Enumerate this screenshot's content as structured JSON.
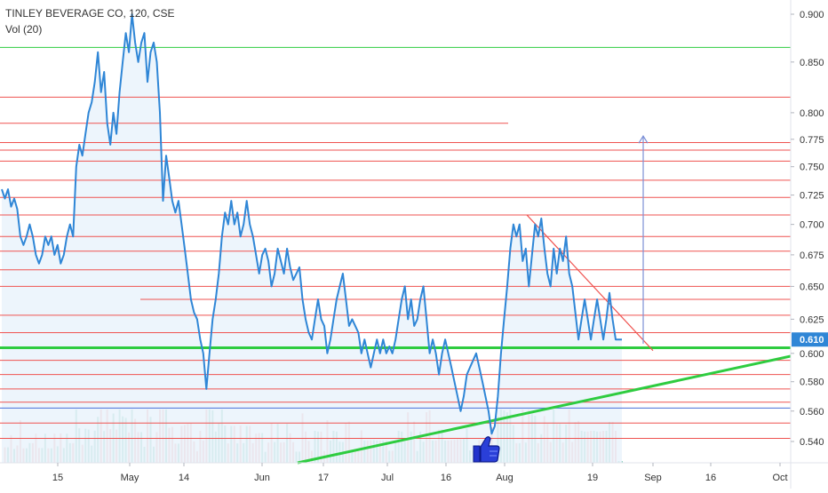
{
  "header": {
    "symbol_line": "TINLEY BEVERAGE CO, 120, CSE",
    "indicator_label": "Vol (20)"
  },
  "colors": {
    "price_line": "#2f86d6",
    "area_fill": "#e9f2fb",
    "red_line": "#ef5350",
    "green_line": "#2ecc40",
    "blue_line": "#4a6fd8",
    "arrow": "#7b8fd6",
    "vol_up": "#83c9b6",
    "vol_down": "#f3a9a9",
    "price_badge_bg": "#2f86d6",
    "price_badge_text": "#ffffff"
  },
  "chart_data": {
    "type": "line",
    "title": "TINLEY BEVERAGE CO, 120, CSE",
    "x_tick_labels": [
      "15",
      "May",
      "14",
      "Jun",
      "17",
      "Jul",
      "16",
      "Aug",
      "19",
      "Sep",
      "16",
      "Oct"
    ],
    "y_tick_labels": [
      "0.540",
      "0.560",
      "0.580",
      "0.600",
      "0.625",
      "0.650",
      "0.675",
      "0.700",
      "0.725",
      "0.750",
      "0.775",
      "0.800",
      "0.850",
      "0.900"
    ],
    "ylim": [
      0.53,
      0.91
    ],
    "y_scale": "log",
    "last_price_label": "0.610",
    "grid": false,
    "series": [
      {
        "values": [
          0.73,
          0.722,
          0.73,
          0.715,
          0.722,
          0.713,
          0.69,
          0.683,
          0.69,
          0.7,
          0.69,
          0.675,
          0.668,
          0.675,
          0.69,
          0.683,
          0.69,
          0.675,
          0.683,
          0.668,
          0.675,
          0.69,
          0.7,
          0.69,
          0.75,
          0.77,
          0.76,
          0.78,
          0.8,
          0.81,
          0.83,
          0.86,
          0.82,
          0.84,
          0.79,
          0.77,
          0.8,
          0.78,
          0.82,
          0.85,
          0.88,
          0.86,
          0.9,
          0.87,
          0.85,
          0.87,
          0.88,
          0.83,
          0.86,
          0.87,
          0.85,
          0.8,
          0.72,
          0.76,
          0.74,
          0.72,
          0.71,
          0.72,
          0.7,
          0.68,
          0.66,
          0.64,
          0.63,
          0.625,
          0.61,
          0.6,
          0.575,
          0.6,
          0.625,
          0.64,
          0.66,
          0.69,
          0.71,
          0.7,
          0.72,
          0.7,
          0.71,
          0.69,
          0.7,
          0.72,
          0.7,
          0.69,
          0.675,
          0.66,
          0.675,
          0.68,
          0.67,
          0.65,
          0.66,
          0.68,
          0.67,
          0.66,
          0.68,
          0.665,
          0.655,
          0.66,
          0.665,
          0.64,
          0.625,
          0.615,
          0.61,
          0.625,
          0.64,
          0.625,
          0.62,
          0.6,
          0.61,
          0.625,
          0.64,
          0.65,
          0.66,
          0.64,
          0.62,
          0.625,
          0.62,
          0.615,
          0.6,
          0.61,
          0.6,
          0.59,
          0.6,
          0.61,
          0.6,
          0.61,
          0.6,
          0.605,
          0.6,
          0.61,
          0.625,
          0.64,
          0.65,
          0.625,
          0.64,
          0.62,
          0.625,
          0.64,
          0.65,
          0.625,
          0.6,
          0.61,
          0.6,
          0.585,
          0.6,
          0.61,
          0.6,
          0.59,
          0.58,
          0.57,
          0.56,
          0.57,
          0.585,
          0.59,
          0.595,
          0.6,
          0.59,
          0.58,
          0.57,
          0.56,
          0.545,
          0.55,
          0.57,
          0.6,
          0.625,
          0.65,
          0.68,
          0.7,
          0.69,
          0.7,
          0.67,
          0.68,
          0.65,
          0.675,
          0.7,
          0.69,
          0.705,
          0.68,
          0.66,
          0.65,
          0.68,
          0.66,
          0.68,
          0.67,
          0.69,
          0.66,
          0.65,
          0.63,
          0.61,
          0.625,
          0.64,
          0.625,
          0.61,
          0.625,
          0.64,
          0.625,
          0.61,
          0.625,
          0.645,
          0.625,
          0.61,
          0.61,
          0.61
        ]
      }
    ],
    "horizontal_levels_red": [
      0.815,
      0.79,
      0.772,
      0.765,
      0.755,
      0.738,
      0.723,
      0.708,
      0.69,
      0.678,
      0.663,
      0.65,
      0.64,
      0.628,
      0.615,
      0.595,
      0.585,
      0.575,
      0.566,
      0.552,
      0.542
    ],
    "horizontal_levels_green": [
      0.865,
      0.604
    ],
    "horizontal_levels_blue": [
      0.562
    ],
    "volume": {
      "label": "Vol (20)"
    }
  }
}
